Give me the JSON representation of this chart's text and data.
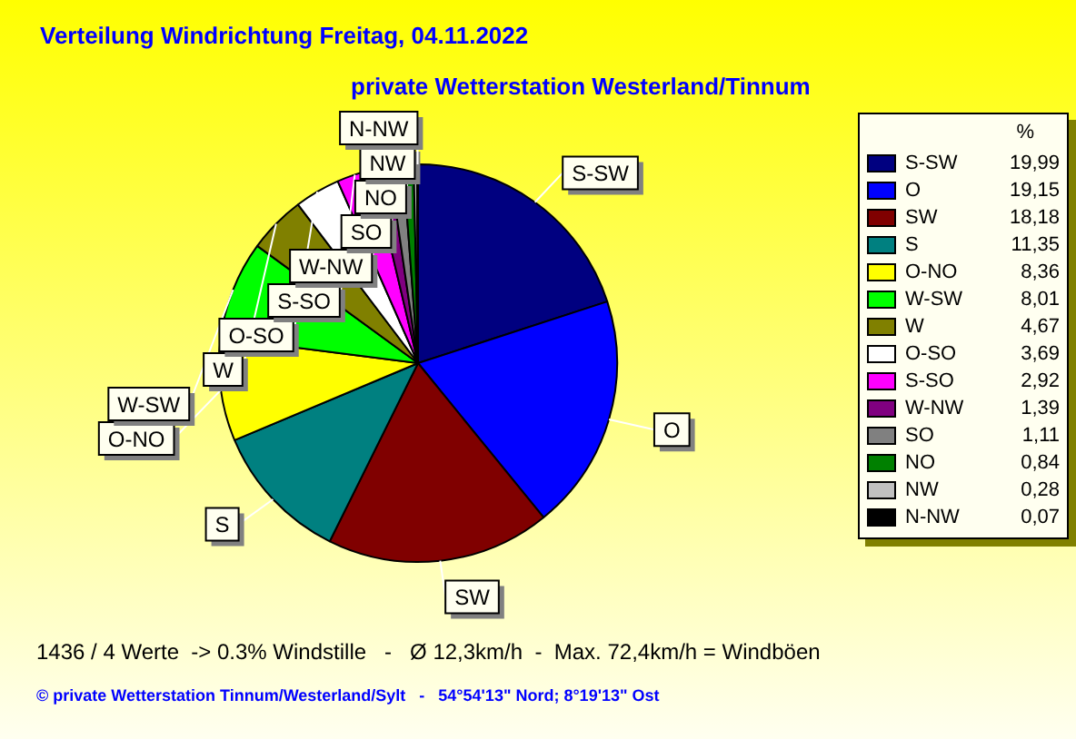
{
  "chart_data": {
    "type": "pie",
    "title": "Verteilung Windrichtung   Freitag, 04.11.2022",
    "subtitle": "private Wetterstation Westerland/Tinnum",
    "categories": [
      "S-SW",
      "O",
      "SW",
      "S",
      "O-NO",
      "W-SW",
      "W",
      "O-SO",
      "S-SO",
      "W-NW",
      "SO",
      "NO",
      "NW",
      "N-NW"
    ],
    "values": [
      19.99,
      19.15,
      18.18,
      11.35,
      8.36,
      8.01,
      4.67,
      3.69,
      2.92,
      1.39,
      1.11,
      0.84,
      0.28,
      0.07
    ],
    "value_labels": [
      "19,99",
      "19,15",
      "18,18",
      "11,35",
      "8,36",
      "8,01",
      "4,67",
      "3,69",
      "2,92",
      "1,39",
      "1,11",
      "0,84",
      "0,28",
      "0,07"
    ],
    "colors": [
      "#000080",
      "#0000ff",
      "#800000",
      "#008080",
      "#ffff00",
      "#00ff00",
      "#808000",
      "#ffffff",
      "#ff00ff",
      "#800080",
      "#808080",
      "#008000",
      "#c0c0c0",
      "#000000"
    ],
    "legend": "right",
    "legend_title": "%",
    "annotations": [
      "1436 / 4 Werte  -> 0.3% Windstille   -   Ø 12,3km/h  -  Max. 72,4km/h = Windböen",
      "© private Wetterstation Tinnum/Westerland/Sylt   -   54°54'13\" Nord; 8°19'13\" Ost"
    ]
  }
}
